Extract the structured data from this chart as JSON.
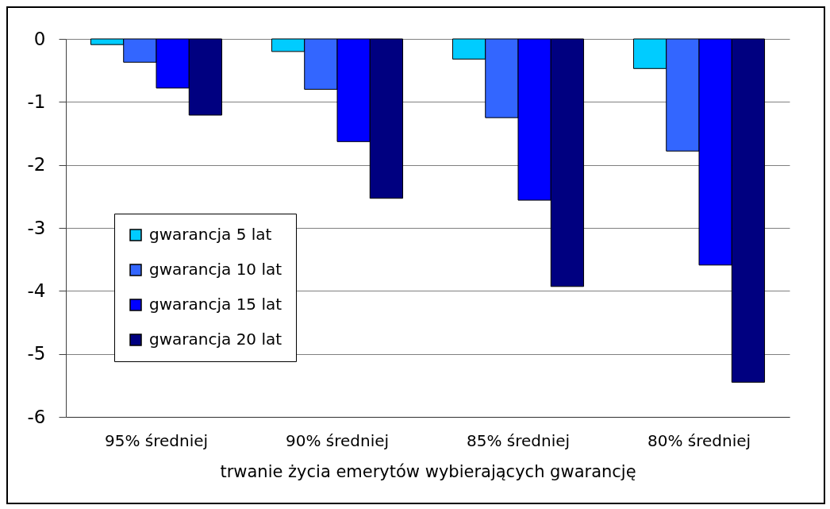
{
  "chart_data": {
    "type": "bar",
    "xlabel": "trwanie życia emerytów wybierających gwarancję",
    "categories": [
      "95% średniej",
      "90% średniej",
      "85% średniej",
      "80% średniej"
    ],
    "series": [
      {
        "name": "gwarancja 5 lat",
        "color": "#00ccff",
        "values": [
          -0.09,
          -0.2,
          -0.32,
          -0.47
        ]
      },
      {
        "name": "gwarancja 10 lat",
        "color": "#3366ff",
        "values": [
          -0.37,
          -0.8,
          -1.25,
          -1.78
        ]
      },
      {
        "name": "gwarancja 15 lat",
        "color": "#0000ff",
        "values": [
          -0.78,
          -1.63,
          -2.56,
          -3.59
        ]
      },
      {
        "name": "gwarancja 20 lat",
        "color": "#000080",
        "values": [
          -1.21,
          -2.53,
          -3.93,
          -5.45
        ]
      }
    ],
    "ylim": [
      -6,
      0
    ],
    "yticks": [
      0,
      -1,
      -2,
      -3,
      -4,
      -5,
      -6
    ],
    "grid": "y",
    "legend": "left"
  }
}
